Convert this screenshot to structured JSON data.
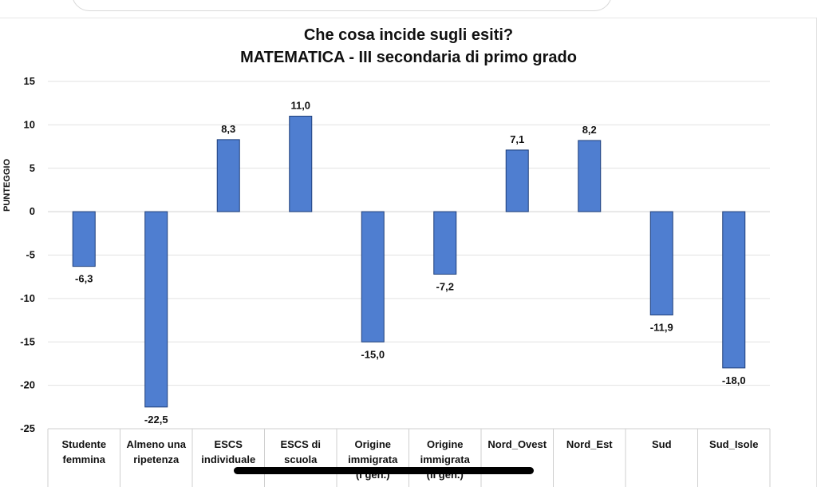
{
  "chart_data": {
    "type": "bar",
    "title": "Che cosa incide sugli esiti?",
    "subtitle": "MATEMATICA - III secondaria di primo grado",
    "ylabel": "PUNTEGGIO",
    "xlabel": "",
    "ylim": [
      -25,
      15
    ],
    "yticks": [
      15,
      10,
      5,
      0,
      -5,
      -10,
      -15,
      -20,
      -25
    ],
    "categories": [
      [
        "Studente",
        "femmina"
      ],
      [
        "Almeno una",
        "ripetenza"
      ],
      [
        "ESCS",
        "individuale"
      ],
      [
        "ESCS di",
        "scuola"
      ],
      [
        "Origine",
        "immigrata",
        "(I gen.)"
      ],
      [
        "Origine",
        "immigrata",
        "(II gen.)"
      ],
      [
        "Nord_Ovest"
      ],
      [
        "Nord_Est"
      ],
      [
        "Sud"
      ],
      [
        "Sud_Isole"
      ]
    ],
    "values": [
      -6.3,
      -22.5,
      8.3,
      11.0,
      -15.0,
      -7.2,
      7.1,
      8.2,
      -11.9,
      -18.0
    ],
    "value_labels": [
      "-6,3",
      "-22,5",
      "8,3",
      "11,0",
      "-15,0",
      "-7,2",
      "7,1",
      "8,2",
      "-11,9",
      "-18,0"
    ],
    "grid": true,
    "legend": "none",
    "bar_color": "#4f7ed0",
    "bar_stroke": "#1e3f7a"
  }
}
